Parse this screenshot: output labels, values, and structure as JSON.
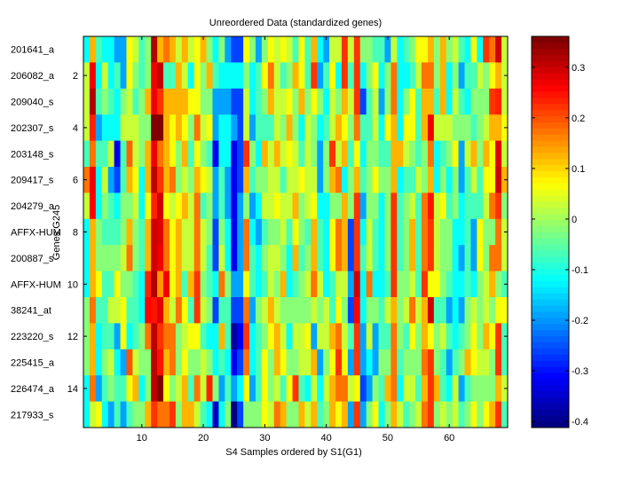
{
  "chart_data": {
    "type": "heatmap",
    "title": "Unreordered Data (standardized genes)",
    "xlabel": "S4 Samples ordered by S1(G1)",
    "ylabel": "Genes G245",
    "n_columns": 69,
    "xlim": [
      0.5,
      69.5
    ],
    "x_ticks": [
      10,
      20,
      30,
      40,
      50,
      60
    ],
    "y_ticks": [
      2,
      4,
      6,
      8,
      10,
      12,
      14
    ],
    "row_labels": [
      "201641_a",
      "206082_a",
      "209040_s",
      "202307_s",
      "203148_s",
      "209417_s",
      "204279_a",
      "AFFX-HUM",
      "200887_s",
      "AFFX-HUM",
      "38241_at",
      "223220_s",
      "225415_a",
      "226474_a",
      "217933_s"
    ],
    "colormap": "jet",
    "clim": [
      -0.412,
      0.361
    ],
    "colorbar_ticks": [
      0.3,
      0.2,
      0.1,
      0,
      -0.1,
      -0.2,
      -0.3,
      -0.4
    ],
    "colorbar_position": "right",
    "values": [
      [
        -0.12,
        0.12,
        -0.07,
        -0.12,
        -0.12,
        -0.19,
        -0.19,
        0.07,
        0.03,
        -0.07,
        -0.02,
        0.32,
        0.12,
        0.17,
        0.12,
        0.03,
        0.12,
        0.03,
        0.07,
        0.12,
        -0.02,
        -0.12,
        -0.02,
        -0.19,
        -0.26,
        -0.26,
        0.07,
        -0.02,
        -0.19,
        -0.02,
        0.07,
        0.03,
        0.07,
        0.03,
        -0.07,
        0.07,
        -0.07,
        0.12,
        -0.12,
        -0.19,
        0.03,
        0.03,
        0.22,
        0.03,
        0.22,
        -0.02,
        -0.02,
        -0.07,
        -0.07,
        -0.19,
        0.03,
        -0.12,
        -0.07,
        -0.02,
        0.07,
        0.07,
        0.12,
        -0.02,
        0.12,
        -0.02,
        0.03,
        -0.07,
        -0.12,
        0.07,
        -0.12,
        0.22,
        0.17,
        0.29,
        0.03
      ],
      [
        0.03,
        0.27,
        -0.12,
        0.03,
        -0.12,
        -0.07,
        -0.19,
        0.07,
        -0.02,
        -0.07,
        -0.02,
        0.27,
        0.31,
        -0.07,
        -0.07,
        0.12,
        0.03,
        -0.12,
        0.07,
        -0.02,
        0.12,
        -0.07,
        -0.12,
        -0.12,
        -0.12,
        -0.12,
        -0.02,
        -0.12,
        -0.07,
        0.07,
        0.17,
        0.03,
        -0.07,
        -0.02,
        0.12,
        0.07,
        -0.07,
        0.22,
        -0.19,
        -0.07,
        0.07,
        -0.12,
        0.22,
        -0.07,
        0.22,
        -0.12,
        -0.02,
        0.07,
        -0.12,
        -0.02,
        0.17,
        -0.12,
        -0.12,
        -0.07,
        0.03,
        0.17,
        0.17,
        -0.02,
        0.12,
        -0.12,
        -0.02,
        -0.19,
        -0.07,
        -0.07,
        0.03,
        -0.02,
        0.07,
        0.12,
        0.03
      ],
      [
        0.03,
        0.32,
        -0.07,
        -0.02,
        -0.07,
        -0.12,
        -0.02,
        0.03,
        -0.07,
        -0.02,
        0.12,
        0.27,
        0.22,
        0.12,
        0.12,
        0.12,
        0.12,
        0.07,
        0.07,
        -0.02,
        -0.02,
        -0.19,
        -0.19,
        -0.19,
        -0.26,
        -0.26,
        0.03,
        -0.12,
        -0.07,
        -0.02,
        0.12,
        0.03,
        0.03,
        0.07,
        -0.02,
        0.12,
        -0.02,
        0.07,
        -0.02,
        -0.12,
        0.03,
        -0.02,
        0.12,
        0.03,
        0.22,
        -0.26,
        -0.07,
        0.03,
        -0.19,
        -0.02,
        0.17,
        -0.12,
        -0.02,
        0.07,
        -0.07,
        0.12,
        0.12,
        -0.07,
        0.12,
        -0.12,
        0.03,
        -0.07,
        -0.12,
        -0.02,
        -0.02,
        -0.02,
        0.22,
        0.24,
        0.03
      ],
      [
        0.03,
        0.24,
        -0.19,
        -0.12,
        -0.12,
        -0.12,
        0.03,
        0.03,
        0.03,
        -0.02,
        -0.02,
        0.36,
        0.36,
        0.12,
        0.07,
        0.12,
        0.07,
        -0.02,
        0.17,
        0.03,
        0.07,
        -0.19,
        -0.12,
        -0.12,
        -0.19,
        -0.26,
        0.03,
        -0.19,
        -0.07,
        -0.07,
        -0.07,
        0.03,
        -0.02,
        0.12,
        -0.02,
        -0.12,
        0.03,
        -0.02,
        -0.12,
        -0.07,
        0.03,
        0.12,
        0.07,
        -0.02,
        0.17,
        -0.07,
        -0.07,
        0.03,
        -0.12,
        0.07,
        0.12,
        -0.12,
        0.07,
        0.07,
        -0.07,
        0.12,
        0.27,
        0.03,
        0.03,
        0.03,
        -0.02,
        -0.02,
        -0.02,
        -0.07,
        -0.02,
        0.03,
        0.12,
        0.12,
        0.07
      ],
      [
        -0.07,
        0.17,
        -0.07,
        -0.07,
        0.03,
        -0.32,
        -0.07,
        0.19,
        0.03,
        -0.02,
        0.12,
        0.27,
        0.17,
        0.12,
        0.07,
        -0.02,
        0.12,
        -0.07,
        0.07,
        -0.02,
        -0.07,
        -0.32,
        -0.12,
        -0.12,
        -0.32,
        -0.26,
        0.22,
        -0.02,
        -0.12,
        0.12,
        0.03,
        0.12,
        0.03,
        0.07,
        0.03,
        -0.07,
        0.03,
        -0.02,
        -0.19,
        -0.02,
        0.22,
        0.03,
        0.12,
        -0.07,
        0.07,
        -0.12,
        -0.02,
        -0.02,
        -0.07,
        -0.07,
        0.12,
        0.12,
        0.03,
        -0.02,
        -0.07,
        -0.02,
        0.17,
        -0.12,
        -0.07,
        -0.02,
        0.07,
        -0.19,
        0.03,
        0.12,
        -0.02,
        0.12,
        0.07,
        0.28,
        0.03
      ],
      [
        0.17,
        0.27,
        -0.12,
        0.03,
        -0.19,
        -0.26,
        -0.07,
        0.12,
        0.07,
        -0.12,
        0.12,
        0.31,
        0.22,
        0.12,
        0.17,
        -0.02,
        0.03,
        -0.02,
        0.12,
        0.07,
        0.03,
        -0.19,
        -0.07,
        -0.19,
        -0.32,
        -0.26,
        0.12,
        -0.07,
        -0.02,
        -0.02,
        0.03,
        0.03,
        -0.07,
        0.03,
        0.03,
        0.07,
        0.03,
        0.03,
        -0.19,
        -0.02,
        0.12,
        0.17,
        -0.12,
        -0.02,
        0.12,
        -0.07,
        -0.02,
        0.07,
        -0.02,
        -0.02,
        0.12,
        -0.12,
        -0.07,
        -0.07,
        0.03,
        -0.02,
        0.12,
        -0.12,
        -0.02,
        -0.12,
        -0.02,
        -0.19,
        -0.07,
        0.03,
        -0.07,
        0.07,
        0.07,
        0.3,
        0.12
      ],
      [
        0.03,
        0.26,
        -0.12,
        -0.02,
        -0.07,
        -0.12,
        -0.02,
        -0.02,
        0.03,
        -0.12,
        0.07,
        0.23,
        0.3,
        0.07,
        0.03,
        0.07,
        0.12,
        0.03,
        0.17,
        -0.07,
        -0.02,
        -0.19,
        -0.07,
        -0.19,
        -0.32,
        -0.19,
        -0.02,
        -0.19,
        -0.12,
        0.03,
        0.03,
        0.07,
        0.03,
        0.03,
        0.12,
        -0.02,
        0.03,
        0.07,
        -0.12,
        -0.12,
        -0.02,
        -0.02,
        0.12,
        -0.02,
        0.22,
        -0.19,
        -0.02,
        -0.02,
        -0.12,
        -0.02,
        0.22,
        -0.07,
        -0.02,
        0.03,
        -0.07,
        0.17,
        0.25,
        0.03,
        0.07,
        -0.07,
        -0.02,
        -0.12,
        -0.07,
        -0.07,
        -0.07,
        0.03,
        0.17,
        0.22,
        -0.02
      ],
      [
        -0.12,
        0.12,
        -0.02,
        -0.07,
        -0.07,
        -0.07,
        -0.02,
        0.12,
        -0.02,
        -0.07,
        0.12,
        0.3,
        0.28,
        0.17,
        0.07,
        0.12,
        0.03,
        0.03,
        0.17,
        0.03,
        -0.02,
        -0.26,
        -0.02,
        -0.12,
        -0.32,
        -0.19,
        0.17,
        -0.12,
        -0.19,
        -0.07,
        -0.02,
        -0.02,
        0.03,
        -0.07,
        0.07,
        -0.02,
        -0.07,
        0.12,
        -0.07,
        -0.12,
        0.07,
        0.17,
        0.12,
        -0.26,
        0.22,
        -0.12,
        0.03,
        -0.07,
        -0.12,
        -0.02,
        0.22,
        -0.07,
        -0.02,
        0.12,
        -0.07,
        0.17,
        0.22,
        0.03,
        -0.02,
        -0.02,
        -0.12,
        -0.12,
        -0.07,
        -0.19,
        0.07,
        -0.02,
        -0.02,
        0.17,
        0.03
      ],
      [
        -0.12,
        0.12,
        -0.02,
        -0.02,
        -0.02,
        -0.02,
        0.03,
        0.17,
        -0.02,
        -0.07,
        0.12,
        0.3,
        0.27,
        0.17,
        0.07,
        0.12,
        0.03,
        0.03,
        0.17,
        0.03,
        -0.07,
        -0.26,
        0.03,
        -0.12,
        -0.32,
        -0.19,
        0.17,
        -0.07,
        -0.12,
        -0.02,
        0.03,
        0.03,
        -0.02,
        -0.12,
        0.12,
        -0.07,
        -0.02,
        0.12,
        -0.07,
        -0.12,
        0.07,
        0.17,
        0.12,
        -0.26,
        0.22,
        -0.07,
        0.03,
        -0.07,
        -0.12,
        -0.02,
        0.22,
        -0.07,
        -0.02,
        0.12,
        -0.07,
        0.17,
        0.22,
        0.03,
        -0.02,
        -0.02,
        -0.12,
        -0.19,
        -0.07,
        -0.19,
        0.07,
        -0.02,
        0.17,
        0.17,
        0.03
      ],
      [
        -0.12,
        0.12,
        0.07,
        -0.07,
        -0.07,
        0.07,
        -0.02,
        -0.02,
        -0.07,
        -0.12,
        0.24,
        0.32,
        0.15,
        0.27,
        0.07,
        0.12,
        -0.07,
        0.12,
        0.22,
        -0.02,
        -0.07,
        -0.12,
        0.17,
        -0.02,
        -0.19,
        -0.19,
        0.07,
        -0.07,
        -0.12,
        -0.07,
        0.03,
        -0.02,
        0.12,
        -0.12,
        -0.07,
        -0.02,
        0.03,
        0.17,
        0.03,
        -0.12,
        -0.07,
        0.03,
        0.03,
        -0.19,
        0.3,
        -0.12,
        0.17,
        -0.12,
        -0.12,
        -0.07,
        0.22,
        -0.02,
        -0.02,
        0.03,
        -0.07,
        0.22,
        0.07,
        0.07,
        -0.02,
        -0.07,
        -0.12,
        -0.12,
        -0.07,
        -0.12,
        -0.02,
        0.03,
        0.12,
        -0.02,
        -0.07
      ],
      [
        -0.02,
        0.17,
        -0.07,
        -0.07,
        0.03,
        0.03,
        0.07,
        -0.07,
        -0.07,
        -0.12,
        0.26,
        0.25,
        0.28,
        0.12,
        0.03,
        0.17,
        0.07,
        -0.07,
        0.22,
        0.03,
        -0.02,
        -0.26,
        -0.07,
        -0.07,
        -0.26,
        -0.26,
        0.17,
        -0.19,
        -0.02,
        0.03,
        0.12,
        0.03,
        -0.02,
        -0.02,
        -0.02,
        -0.02,
        -0.02,
        0.03,
        -0.02,
        0.03,
        -0.07,
        0.07,
        -0.02,
        -0.26,
        0.26,
        -0.12,
        -0.02,
        -0.02,
        -0.07,
        0.03,
        0.12,
        -0.02,
        0.03,
        0.17,
        0.03,
        0.12,
        0.29,
        -0.07,
        -0.07,
        -0.19,
        -0.12,
        -0.19,
        -0.02,
        0.03,
        -0.02,
        0.03,
        -0.02,
        0.07,
        0.07
      ],
      [
        -0.02,
        0.12,
        -0.12,
        -0.07,
        -0.07,
        -0.19,
        0.07,
        -0.12,
        -0.07,
        -0.02,
        0.17,
        0.31,
        0.22,
        0.17,
        0.17,
        -0.02,
        0.03,
        0.07,
        0.07,
        -0.07,
        -0.12,
        -0.12,
        0.12,
        -0.07,
        -0.38,
        -0.32,
        0.22,
        -0.12,
        -0.07,
        -0.02,
        0.07,
        0.12,
        0.03,
        -0.12,
        0.03,
        0.03,
        0.07,
        -0.19,
        0.03,
        0.03,
        0.12,
        0.17,
        0.03,
        -0.07,
        0.22,
        -0.19,
        0.03,
        -0.19,
        -0.07,
        -0.07,
        0.17,
        -0.02,
        -0.07,
        0.07,
        -0.02,
        0.12,
        0.07,
        -0.02,
        0.03,
        -0.07,
        -0.12,
        -0.07,
        -0.02,
        0.07,
        -0.02,
        0.12,
        0.07,
        0.22,
        -0.07
      ],
      [
        -0.02,
        0.12,
        -0.12,
        -0.02,
        0.03,
        -0.12,
        -0.19,
        0.2,
        0.03,
        -0.02,
        -0.02,
        0.31,
        0.25,
        0.12,
        0.17,
        -0.02,
        0.07,
        -0.02,
        -0.02,
        0.03,
        -0.02,
        -0.12,
        -0.07,
        -0.12,
        -0.32,
        -0.26,
        0.17,
        -0.12,
        -0.07,
        0.07,
        -0.02,
        0.12,
        0.07,
        -0.02,
        -0.02,
        0.03,
        0.03,
        0.12,
        -0.19,
        -0.02,
        0.07,
        0.22,
        0.07,
        -0.19,
        0.22,
        -0.19,
        -0.12,
        -0.19,
        -0.02,
        -0.02,
        0.17,
        -0.07,
        -0.02,
        -0.02,
        -0.02,
        0.17,
        0.22,
        -0.02,
        -0.07,
        -0.19,
        -0.07,
        -0.02,
        0.12,
        0.07,
        0.03,
        0.03,
        -0.02,
        0.22,
        -0.07
      ],
      [
        -0.12,
        0.17,
        -0.19,
        -0.07,
        -0.02,
        -0.07,
        -0.07,
        0.07,
        0.12,
        -0.12,
        -0.02,
        0.31,
        0.36,
        0.07,
        -0.02,
        0.03,
        0.12,
        -0.07,
        0.17,
        0.03,
        0.23,
        -0.02,
        -0.19,
        -0.07,
        -0.19,
        -0.12,
        0.07,
        -0.19,
        -0.07,
        0.07,
        -0.02,
        0.03,
        -0.07,
        0.07,
        0.22,
        -0.07,
        -0.12,
        0.03,
        -0.12,
        0.03,
        0.12,
        0.17,
        0.17,
        0.03,
        0.07,
        -0.26,
        -0.19,
        -0.02,
        -0.07,
        0.12,
        0.17,
        -0.12,
        0.03,
        0.03,
        -0.07,
        0.12,
        0.22,
        0.12,
        -0.07,
        -0.12,
        0.03,
        -0.19,
        -0.07,
        -0.02,
        -0.02,
        -0.02,
        -0.02,
        0.12,
        0.03
      ],
      [
        -0.12,
        0.03,
        0.07,
        -0.12,
        -0.19,
        -0.07,
        -0.19,
        -0.07,
        -0.02,
        -0.02,
        0.12,
        0.22,
        0.17,
        0.17,
        0.22,
        -0.02,
        0.12,
        0.12,
        0.03,
        -0.07,
        -0.12,
        -0.36,
        -0.12,
        -0.02,
        -0.4,
        -0.26,
        -0.02,
        -0.02,
        -0.02,
        0.07,
        0.03,
        0.17,
        0.12,
        -0.02,
        -0.02,
        0.12,
        0.03,
        0.12,
        -0.07,
        -0.02,
        0.12,
        0.07,
        0.12,
        -0.19,
        0.22,
        -0.19,
        -0.02,
        0.07,
        -0.12,
        -0.02,
        0.12,
        0.03,
        -0.07,
        -0.02,
        0.03,
        0.17,
        0.22,
        -0.02,
        0.03,
        -0.02,
        0.03,
        -0.07,
        -0.02,
        0.07,
        -0.02,
        0.07,
        0.12,
        0.22,
        -0.07
      ]
    ]
  }
}
